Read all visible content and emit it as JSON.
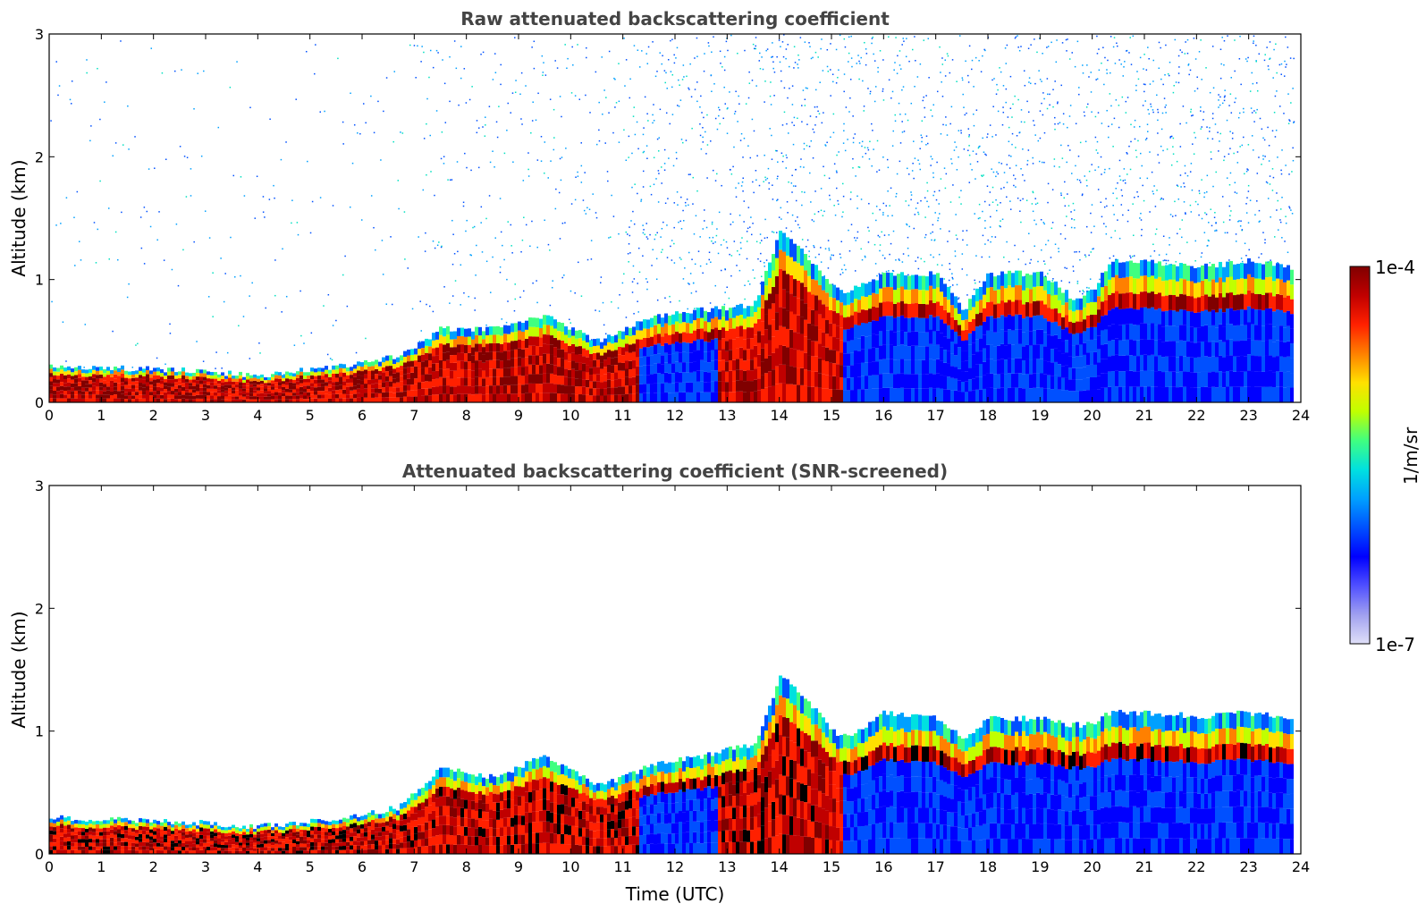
{
  "chart_data": [
    {
      "type": "heatmap",
      "title": "Raw attenuated backscattering coefficient",
      "xlabel": "",
      "ylabel": "Altitude (km)",
      "xlim": [
        0,
        24
      ],
      "ylim": [
        0,
        3
      ],
      "x_ticks": [
        "0",
        "1",
        "2",
        "3",
        "4",
        "5",
        "6",
        "7",
        "8",
        "9",
        "10",
        "11",
        "12",
        "13",
        "14",
        "15",
        "16",
        "17",
        "18",
        "19",
        "20",
        "21",
        "22",
        "23",
        "24"
      ],
      "y_ticks": [
        "0",
        "1",
        "2",
        "3"
      ],
      "profile_times": [
        0,
        1,
        2,
        3,
        4,
        5,
        6,
        6.7,
        7.5,
        8.5,
        9.5,
        10.5,
        11,
        11.5,
        12.5,
        13.5,
        14,
        14.5,
        15,
        15.3,
        16,
        17,
        17.5,
        18,
        19,
        19.6,
        20,
        20.3,
        21,
        22,
        23,
        23.8
      ],
      "layer_top_km": [
        0.3,
        0.28,
        0.27,
        0.25,
        0.22,
        0.27,
        0.32,
        0.38,
        0.6,
        0.6,
        0.7,
        0.5,
        0.6,
        0.7,
        0.75,
        0.8,
        1.4,
        1.2,
        0.95,
        0.9,
        1.05,
        1.05,
        0.75,
        1.05,
        1.05,
        0.85,
        0.9,
        1.15,
        1.15,
        1.1,
        1.15,
        1.1
      ],
      "noise_above_layer": true,
      "shows_colorbar": false
    },
    {
      "type": "heatmap",
      "title": "Attenuated backscattering coefficient (SNR-screened)",
      "xlabel": "Time (UTC)",
      "ylabel": "Altitude (km)",
      "xlim": [
        0,
        24
      ],
      "ylim": [
        0,
        3
      ],
      "x_ticks": [
        "0",
        "1",
        "2",
        "3",
        "4",
        "5",
        "6",
        "7",
        "8",
        "9",
        "10",
        "11",
        "12",
        "13",
        "14",
        "15",
        "16",
        "17",
        "18",
        "19",
        "20",
        "21",
        "22",
        "23",
        "24"
      ],
      "y_ticks": [
        "0",
        "1",
        "2",
        "3"
      ],
      "profile_times": [
        0,
        1,
        2,
        3,
        4,
        5,
        6,
        6.7,
        7.5,
        8.5,
        9.5,
        10.5,
        11,
        11.5,
        12.5,
        13.5,
        14,
        14.5,
        15,
        15.3,
        16,
        17,
        17.5,
        18,
        19,
        19.6,
        20,
        20.3,
        21,
        22,
        23,
        23.8
      ],
      "layer_top_km": [
        0.3,
        0.28,
        0.27,
        0.25,
        0.22,
        0.27,
        0.32,
        0.38,
        0.7,
        0.62,
        0.8,
        0.55,
        0.62,
        0.72,
        0.8,
        0.9,
        1.45,
        1.25,
        1.0,
        0.95,
        1.15,
        1.1,
        0.95,
        1.1,
        1.1,
        1.05,
        1.05,
        1.15,
        1.15,
        1.12,
        1.15,
        1.1
      ],
      "noise_above_layer": false,
      "shows_colorbar": false
    }
  ],
  "colorbar": {
    "label": "1/m/sr",
    "max_label": "1e-4",
    "min_label": "1e-7",
    "colormap": [
      "#e0e0f8",
      "#a0a0f0",
      "#5050ff",
      "#0000ff",
      "#0050ff",
      "#00a0ff",
      "#00e0e0",
      "#40ff80",
      "#c0ff00",
      "#ffe000",
      "#ff8000",
      "#ff2000",
      "#c00000",
      "#800000"
    ],
    "scale": "log"
  }
}
